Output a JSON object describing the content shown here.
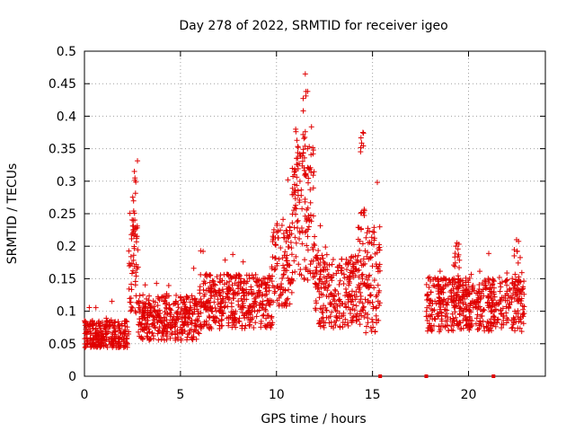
{
  "chart_data": {
    "type": "scatter",
    "title": "Day 278 of 2022, SRMTID for receiver igeo",
    "xlabel": "GPS time / hours",
    "ylabel": "SRMTID / TECUs",
    "xlim": [
      0,
      24
    ],
    "ylim": [
      0,
      0.5
    ],
    "xticks": [
      0,
      5,
      10,
      15,
      20
    ],
    "xtick_labels": [
      "0",
      "5",
      "10",
      "15",
      "20"
    ],
    "yticks": [
      0,
      0.05,
      0.1,
      0.15,
      0.2,
      0.25,
      0.3,
      0.35,
      0.4,
      0.45,
      0.5
    ],
    "ytick_labels": [
      "0",
      "0.05",
      "0.1",
      "0.15",
      "0.2",
      "0.25",
      "0.3",
      "0.35",
      "0.4",
      "0.45",
      "0.5"
    ],
    "grid": true,
    "marker": "plus",
    "color": "#e00000",
    "series": [
      {
        "name": "SRMTID",
        "segments": [
          {
            "x_start": 0.0,
            "x_end": 2.3,
            "base": 0.065,
            "spread": 0.03
          },
          {
            "x_start": 2.3,
            "x_end": 2.8,
            "base": 0.18,
            "spread": 0.12
          },
          {
            "x_start": 2.8,
            "x_end": 6.0,
            "base": 0.09,
            "spread": 0.05
          },
          {
            "x_start": 6.0,
            "x_end": 9.8,
            "base": 0.115,
            "spread": 0.06
          },
          {
            "x_start": 9.8,
            "x_end": 10.8,
            "base": 0.17,
            "spread": 0.09
          },
          {
            "x_start": 10.8,
            "x_end": 12.0,
            "base": 0.25,
            "spread": 0.15
          },
          {
            "x_start": 12.0,
            "x_end": 14.2,
            "base": 0.13,
            "spread": 0.08
          },
          {
            "x_start": 14.2,
            "x_end": 15.4,
            "base": 0.15,
            "spread": 0.12
          },
          {
            "x_start": 17.8,
            "x_end": 22.9,
            "base": 0.11,
            "spread": 0.06
          }
        ],
        "peaks": [
          {
            "x": 2.6,
            "y": 0.315
          },
          {
            "x": 11.5,
            "y": 0.465
          },
          {
            "x": 11.0,
            "y": 0.38
          },
          {
            "x": 14.5,
            "y": 0.375
          },
          {
            "x": 19.4,
            "y": 0.205
          },
          {
            "x": 22.5,
            "y": 0.21
          }
        ],
        "zero_markers_x": [
          15.4,
          17.8,
          21.3
        ]
      }
    ]
  }
}
